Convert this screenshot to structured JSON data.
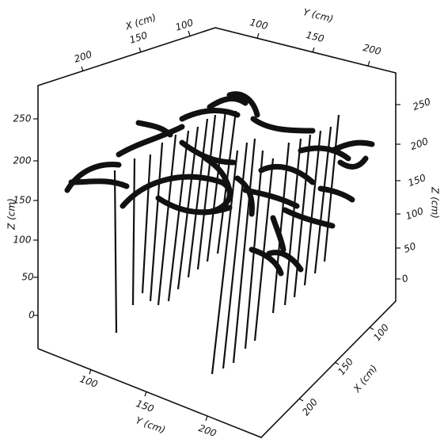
{
  "axes": {
    "x_top": {
      "label": "X (cm)",
      "ticks": [
        "200",
        "150",
        "100"
      ]
    },
    "y_top": {
      "label": "Y (cm)",
      "ticks": [
        "100",
        "150",
        "200"
      ]
    },
    "z_left": {
      "label": "Z (cm)",
      "ticks": [
        "250",
        "200",
        "150",
        "100",
        "50",
        "0"
      ]
    },
    "z_right": {
      "label": "Z (cm)",
      "ticks": [
        "250",
        "200",
        "150",
        "100",
        "50",
        "0"
      ]
    },
    "y_bottom": {
      "label": "Y (cm)",
      "ticks": [
        "100",
        "150",
        "200"
      ]
    },
    "x_bottom": {
      "label": "X (cm)",
      "ticks": [
        "100",
        "150",
        "200"
      ]
    }
  }
}
